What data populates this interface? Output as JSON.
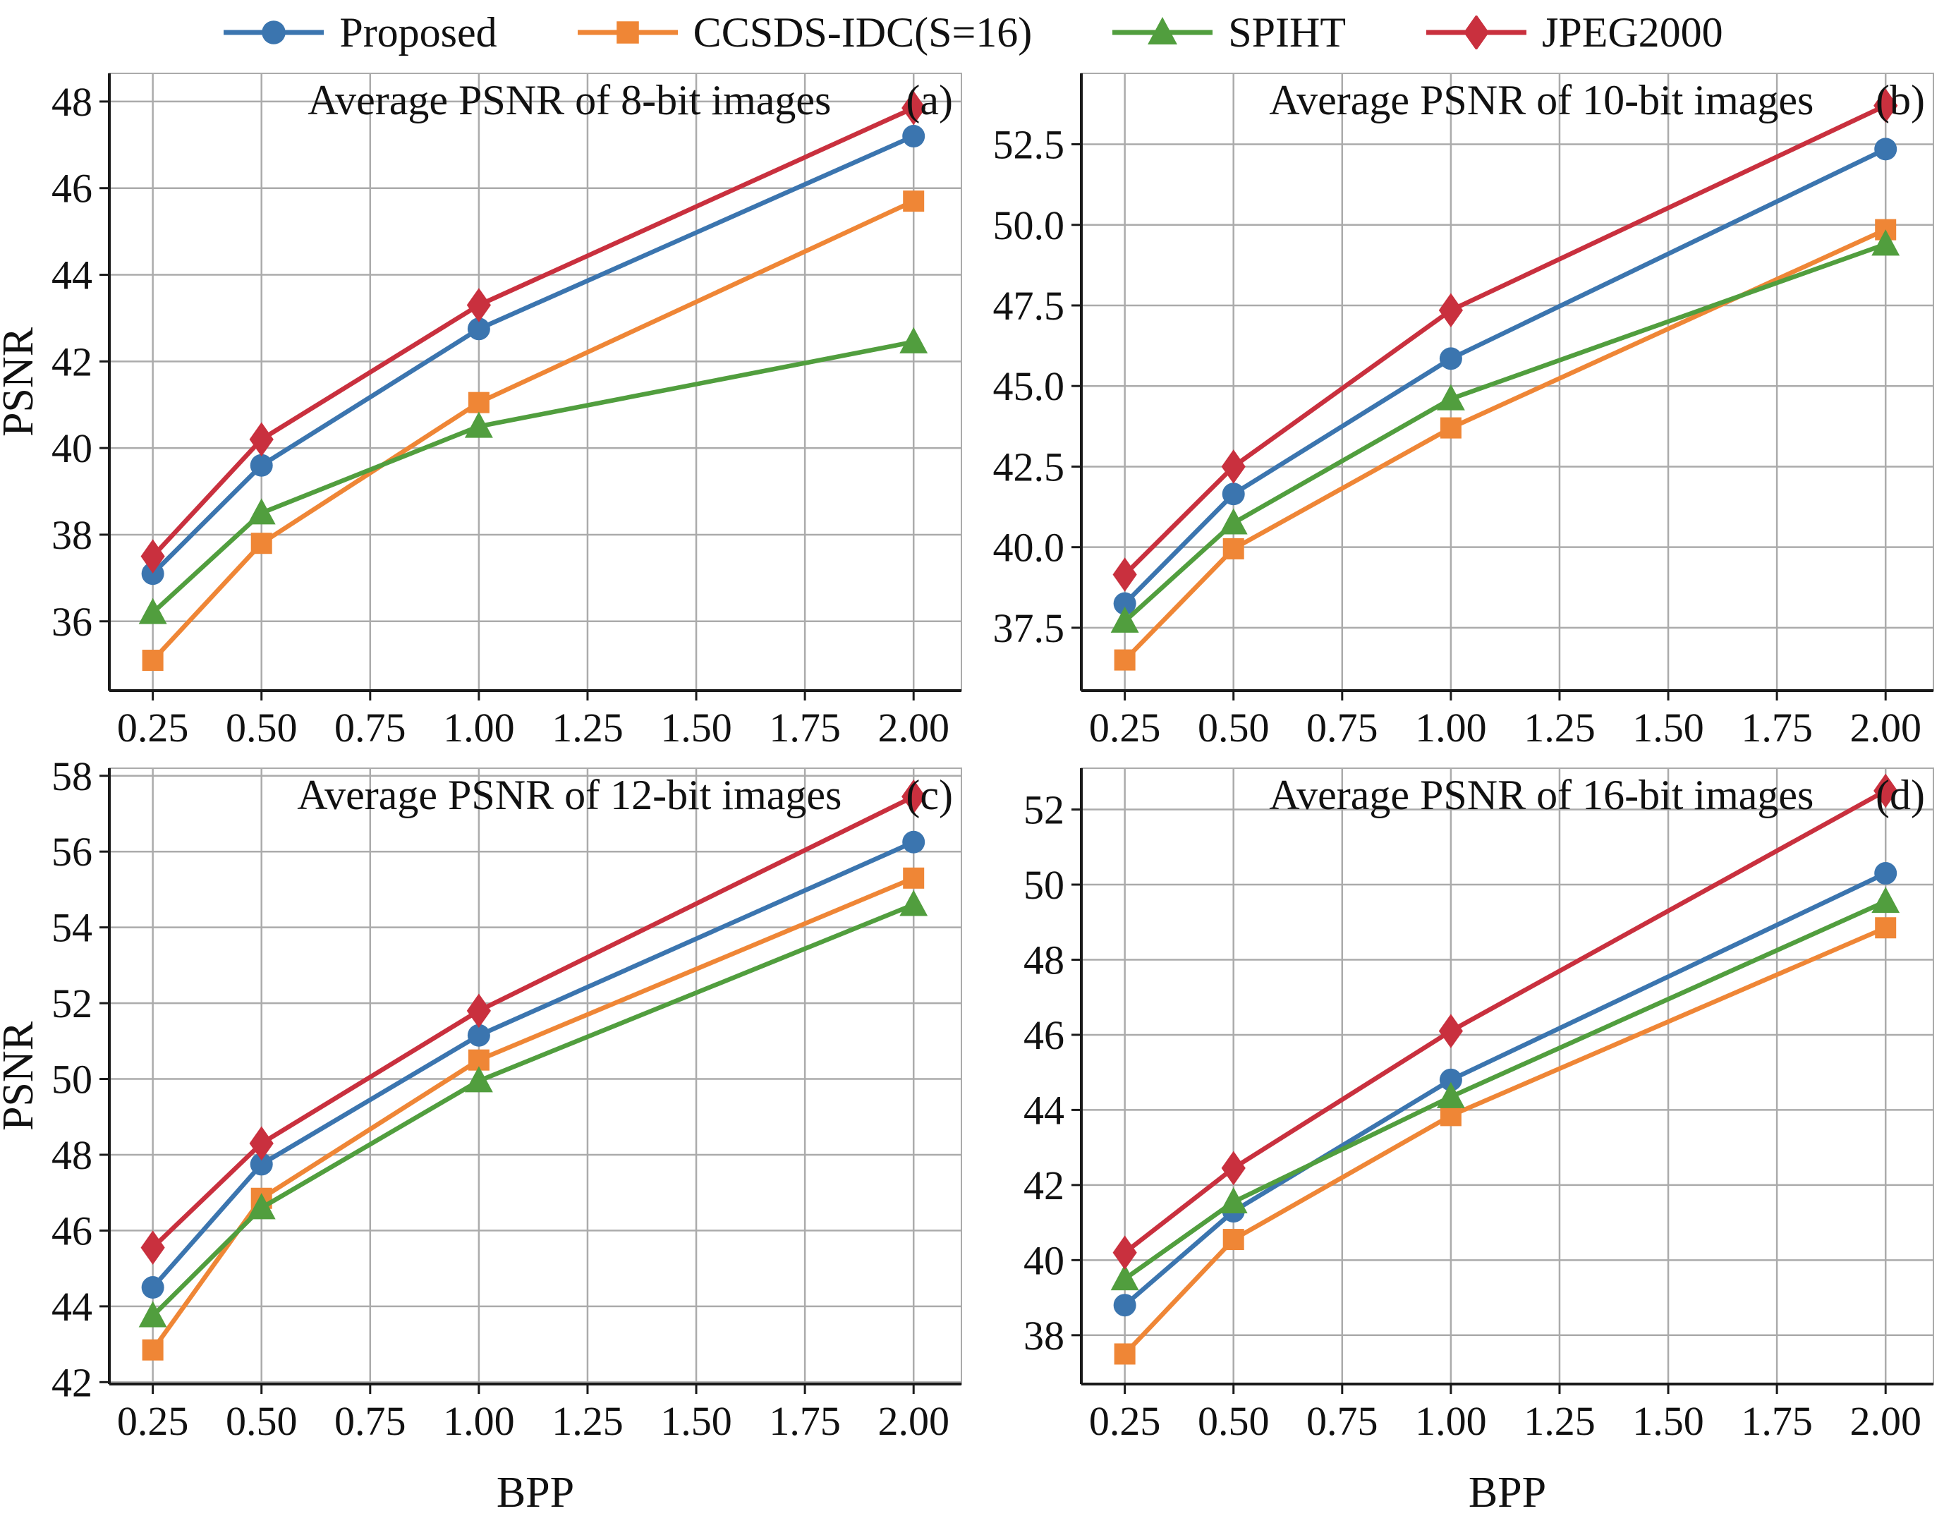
{
  "figure": {
    "grid_color": "#ababab",
    "axis_color": "#1a1a1a",
    "text_color": "#111111",
    "background": "#ffffff",
    "legend": [
      {
        "label": "Proposed",
        "color": "#3B75AF",
        "marker": "circle",
        "size": 16
      },
      {
        "label": "CCSDS-IDC(S=16)",
        "color": "#EF8636",
        "marker": "square",
        "size": 15
      },
      {
        "label": "SPIHT",
        "color": "#519E3E",
        "marker": "triangle",
        "size": 19
      },
      {
        "label": "JPEG2000",
        "color": "#C9303E",
        "marker": "diamond",
        "size": 18
      }
    ]
  },
  "chart_data": {
    "type": "line",
    "xlabel": "BPP",
    "ylabel": "PSNR",
    "x": [
      0.25,
      0.5,
      1.0,
      2.0
    ],
    "xticks": [
      0.25,
      0.5,
      0.75,
      1.0,
      1.25,
      1.5,
      1.75,
      2.0
    ],
    "xlim": [
      0.15,
      2.11
    ],
    "legend_position": "top-center",
    "grid": true,
    "series_names": [
      "Proposed",
      "CCSDS-IDC(S=16)",
      "SPIHT",
      "JPEG2000"
    ],
    "subplots": [
      {
        "label": "(a)",
        "title": "Average PSNR of 8-bit images",
        "ylim": [
          34.4,
          48.65
        ],
        "yticks": [
          36,
          38,
          40,
          42,
          44,
          46,
          48
        ],
        "ydecimals": 0,
        "show_ylabel": true,
        "show_xlabel": false,
        "series": [
          {
            "name": "Proposed",
            "values": [
              37.1,
              39.6,
              42.75,
              47.2
            ]
          },
          {
            "name": "CCSDS-IDC(S=16)",
            "values": [
              35.1,
              37.8,
              41.05,
              45.7
            ]
          },
          {
            "name": "SPIHT",
            "values": [
              36.2,
              38.5,
              40.5,
              42.45
            ]
          },
          {
            "name": "JPEG2000",
            "values": [
              37.5,
              40.2,
              43.3,
              47.85
            ]
          }
        ]
      },
      {
        "label": "(b)",
        "title": "Average PSNR of 10-bit images",
        "ylim": [
          35.55,
          54.7
        ],
        "yticks": [
          37.5,
          40.0,
          42.5,
          45.0,
          47.5,
          50.0,
          52.5
        ],
        "ydecimals": 1,
        "show_ylabel": false,
        "show_xlabel": false,
        "series": [
          {
            "name": "Proposed",
            "values": [
              38.25,
              41.65,
              45.85,
              52.35
            ]
          },
          {
            "name": "CCSDS-IDC(S=16)",
            "values": [
              36.5,
              39.95,
              43.7,
              49.85
            ]
          },
          {
            "name": "SPIHT",
            "values": [
              37.7,
              40.75,
              44.6,
              49.4
            ]
          },
          {
            "name": "JPEG2000",
            "values": [
              39.15,
              42.5,
              47.35,
              53.7
            ]
          }
        ]
      },
      {
        "label": "(c)",
        "title": "Average PSNR of 12-bit images",
        "ylim": [
          41.95,
          58.2
        ],
        "yticks": [
          42,
          44,
          46,
          48,
          50,
          52,
          54,
          56,
          58
        ],
        "ydecimals": 0,
        "show_ylabel": true,
        "show_xlabel": true,
        "series": [
          {
            "name": "Proposed",
            "values": [
              44.5,
              47.75,
              51.15,
              56.25
            ]
          },
          {
            "name": "CCSDS-IDC(S=16)",
            "values": [
              42.85,
              46.85,
              50.5,
              55.3
            ]
          },
          {
            "name": "SPIHT",
            "values": [
              43.75,
              46.6,
              49.95,
              54.6
            ]
          },
          {
            "name": "JPEG2000",
            "values": [
              45.55,
              48.3,
              51.8,
              57.45
            ]
          }
        ]
      },
      {
        "label": "(d)",
        "title": "Average PSNR of 16-bit images",
        "ylim": [
          36.7,
          53.1
        ],
        "yticks": [
          38,
          40,
          42,
          44,
          46,
          48,
          50,
          52
        ],
        "ydecimals": 0,
        "show_ylabel": false,
        "show_xlabel": true,
        "series": [
          {
            "name": "Proposed",
            "values": [
              38.8,
              41.3,
              44.8,
              50.3
            ]
          },
          {
            "name": "CCSDS-IDC(S=16)",
            "values": [
              37.5,
              40.55,
              43.85,
              48.85
            ]
          },
          {
            "name": "SPIHT",
            "values": [
              39.5,
              41.55,
              44.35,
              49.55
            ]
          },
          {
            "name": "JPEG2000",
            "values": [
              40.2,
              42.45,
              46.1,
              52.5
            ]
          }
        ]
      }
    ]
  }
}
